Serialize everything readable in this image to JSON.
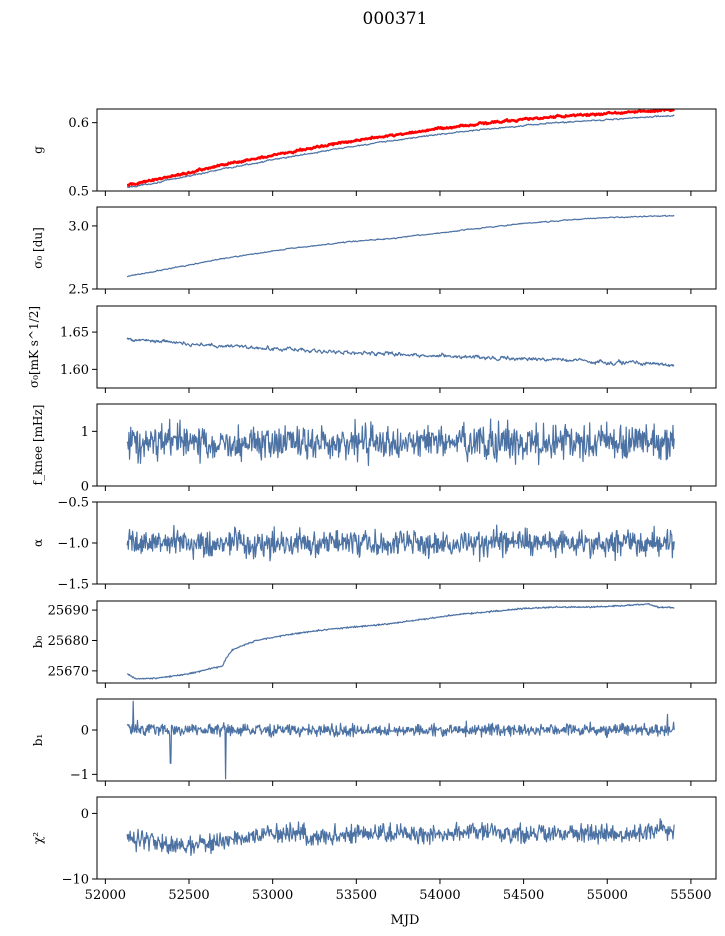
{
  "figure": {
    "title": "000371",
    "xlabel": "MJD"
  },
  "colors": {
    "series": "#4c72a4",
    "overlay": "#ff0000",
    "axes": "#000000"
  },
  "chart_data": [
    {
      "type": "line",
      "id": "g",
      "ylabel": "g",
      "ylim": [
        0.5,
        0.62
      ],
      "yticks": [
        0.5,
        0.6
      ],
      "ytick_labels": [
        "0.5",
        "0.6"
      ],
      "x": [
        52130,
        52300,
        52500,
        52700,
        52900,
        53100,
        53300,
        53500,
        53700,
        53900,
        54100,
        54300,
        54500,
        54700,
        54900,
        55100,
        55300,
        55400
      ],
      "series": [
        {
          "values": [
            0.505,
            0.512,
            0.522,
            0.532,
            0.541,
            0.55,
            0.558,
            0.566,
            0.573,
            0.58,
            0.586,
            0.591,
            0.596,
            0.6,
            0.603,
            0.606,
            0.609,
            0.61
          ],
          "noise": 0.001,
          "color": "#4c72a4"
        },
        {
          "values": [
            0.508,
            0.517,
            0.527,
            0.538,
            0.548,
            0.557,
            0.566,
            0.574,
            0.581,
            0.588,
            0.594,
            0.6,
            0.605,
            0.609,
            0.612,
            0.615,
            0.618,
            0.619
          ],
          "noise": 0.0015,
          "color": "#ff0000",
          "width": 2.6
        }
      ]
    },
    {
      "type": "line",
      "id": "sigma0-du",
      "ylabel": "σ₀ [du]",
      "ylim": [
        2.5,
        3.15
      ],
      "yticks": [
        2.5,
        3.0
      ],
      "ytick_labels": [
        "2.5",
        "3.0"
      ],
      "x": [
        52130,
        52300,
        52500,
        52700,
        52900,
        53100,
        53300,
        53500,
        53700,
        53900,
        54100,
        54300,
        54500,
        54700,
        54900,
        55100,
        55300,
        55400
      ],
      "series": [
        {
          "values": [
            2.6,
            2.64,
            2.69,
            2.74,
            2.78,
            2.82,
            2.85,
            2.88,
            2.9,
            2.93,
            2.96,
            2.99,
            3.02,
            3.04,
            3.06,
            3.07,
            3.08,
            3.08
          ],
          "noise": 0.004,
          "color": "#4c72a4"
        }
      ]
    },
    {
      "type": "line",
      "id": "sigma0-mks",
      "ylabel": "σ₀[mK s^1/2]",
      "ylim": [
        1.575,
        1.685
      ],
      "yticks": [
        1.6,
        1.65
      ],
      "ytick_labels": [
        "1.60",
        "1.65"
      ],
      "x": [
        52130,
        52300,
        52500,
        52700,
        52900,
        53100,
        53300,
        53500,
        53700,
        53900,
        54100,
        54300,
        54500,
        54700,
        54900,
        55100,
        55300,
        55400
      ],
      "series": [
        {
          "values": [
            1.64,
            1.639,
            1.634,
            1.631,
            1.629,
            1.627,
            1.624,
            1.622,
            1.621,
            1.619,
            1.617,
            1.615,
            1.614,
            1.613,
            1.611,
            1.609,
            1.607,
            1.604
          ],
          "noise": 0.0025,
          "color": "#4c72a4"
        }
      ]
    },
    {
      "type": "line",
      "id": "fknee",
      "ylabel": "f_knee [mHz]",
      "ylim": [
        0,
        1.5
      ],
      "yticks": [
        0,
        1
      ],
      "ytick_labels": [
        "0",
        "1"
      ],
      "x": [
        52130,
        52300,
        52500,
        52700,
        52900,
        53100,
        53300,
        53500,
        53700,
        53900,
        54100,
        54300,
        54500,
        54700,
        54900,
        55100,
        55300,
        55400
      ],
      "series": [
        {
          "values": [
            0.8,
            0.8,
            0.8,
            0.8,
            0.8,
            0.8,
            0.8,
            0.8,
            0.8,
            0.8,
            0.8,
            0.8,
            0.8,
            0.8,
            0.8,
            0.8,
            0.8,
            0.8
          ],
          "noise": 0.16,
          "color": "#4c72a4"
        }
      ]
    },
    {
      "type": "line",
      "id": "alpha",
      "ylabel": "α",
      "ylim": [
        -1.5,
        -0.5
      ],
      "yticks": [
        -1.5,
        -1.0,
        -0.5
      ],
      "ytick_labels": [
        "−1.5",
        "−1.0",
        "−0.5"
      ],
      "x": [
        52130,
        52300,
        52500,
        52700,
        52900,
        53100,
        53300,
        53500,
        53700,
        53900,
        54100,
        54300,
        54500,
        54700,
        54900,
        55100,
        55300,
        55400
      ],
      "series": [
        {
          "values": [
            -1.0,
            -1.0,
            -1.0,
            -1.0,
            -1.0,
            -1.0,
            -1.0,
            -1.0,
            -1.0,
            -1.0,
            -1.0,
            -1.0,
            -1.0,
            -1.0,
            -1.0,
            -1.0,
            -1.0,
            -1.0
          ],
          "noise": 0.08,
          "color": "#4c72a4"
        }
      ]
    },
    {
      "type": "line",
      "id": "b0",
      "ylabel": "b₀",
      "ylim": [
        25666,
        25693
      ],
      "yticks": [
        25670,
        25680,
        25690
      ],
      "ytick_labels": [
        "25670",
        "25680",
        "25690"
      ],
      "x": [
        52130,
        52180,
        52300,
        52500,
        52650,
        52700,
        52720,
        52760,
        52900,
        53100,
        53300,
        53500,
        53700,
        53900,
        54100,
        54300,
        54500,
        54700,
        54900,
        55100,
        55250,
        55300,
        55400
      ],
      "series": [
        {
          "values": [
            25669,
            25667.5,
            25667.5,
            25669,
            25671,
            25671.5,
            25674,
            25677,
            25680,
            25682,
            25683.5,
            25684.5,
            25685.5,
            25687,
            25688.5,
            25689.5,
            25690.5,
            25691,
            25691,
            25691.5,
            25692,
            25691,
            25690.8
          ],
          "noise": 0.12,
          "color": "#4c72a4"
        }
      ]
    },
    {
      "type": "line",
      "id": "b1",
      "ylabel": "b₁",
      "ylim": [
        -1.15,
        0.7
      ],
      "yticks": [
        -1,
        0
      ],
      "ytick_labels": [
        "−1",
        "0"
      ],
      "x": [
        52130,
        52300,
        52500,
        52700,
        52900,
        53100,
        53300,
        53500,
        53700,
        53900,
        54100,
        54300,
        54500,
        54700,
        54900,
        55100,
        55300,
        55400
      ],
      "series": [
        {
          "values": [
            0.05,
            0.0,
            0.0,
            0.0,
            0.0,
            0.0,
            0.0,
            0.0,
            0.0,
            0.0,
            0.0,
            0.0,
            0.0,
            0.0,
            0.0,
            0.0,
            0.0,
            0.0
          ],
          "noise": 0.07,
          "color": "#4c72a4"
        }
      ],
      "spikes": [
        {
          "x": 52165,
          "y": 0.65
        },
        {
          "x": 52390,
          "y": -0.75
        },
        {
          "x": 52720,
          "y": -1.1
        },
        {
          "x": 55360,
          "y": 0.35
        }
      ]
    },
    {
      "type": "line",
      "id": "chi2",
      "ylabel": "χ²",
      "ylim": [
        -10,
        2.5
      ],
      "yticks": [
        -10,
        0
      ],
      "ytick_labels": [
        "−10",
        "0"
      ],
      "x": [
        52130,
        52300,
        52500,
        52700,
        52900,
        53100,
        53300,
        53500,
        53700,
        53900,
        54100,
        54300,
        54500,
        54700,
        54900,
        55100,
        55300,
        55400
      ],
      "series": [
        {
          "values": [
            -3.5,
            -4.5,
            -5.0,
            -4.2,
            -3.5,
            -3.0,
            -3.5,
            -3.0,
            -3.0,
            -3.2,
            -3.0,
            -2.8,
            -3.2,
            -3.0,
            -2.8,
            -3.2,
            -2.2,
            -3.0
          ],
          "noise": 0.7,
          "color": "#4c72a4"
        }
      ]
    }
  ],
  "xaxis": {
    "xlim": [
      51950,
      55650
    ],
    "ticks": [
      52000,
      52500,
      53000,
      53500,
      54000,
      54500,
      55000,
      55500
    ],
    "tick_labels": [
      "52000",
      "52500",
      "53000",
      "53500",
      "54000",
      "54500",
      "55000",
      "55500"
    ]
  }
}
